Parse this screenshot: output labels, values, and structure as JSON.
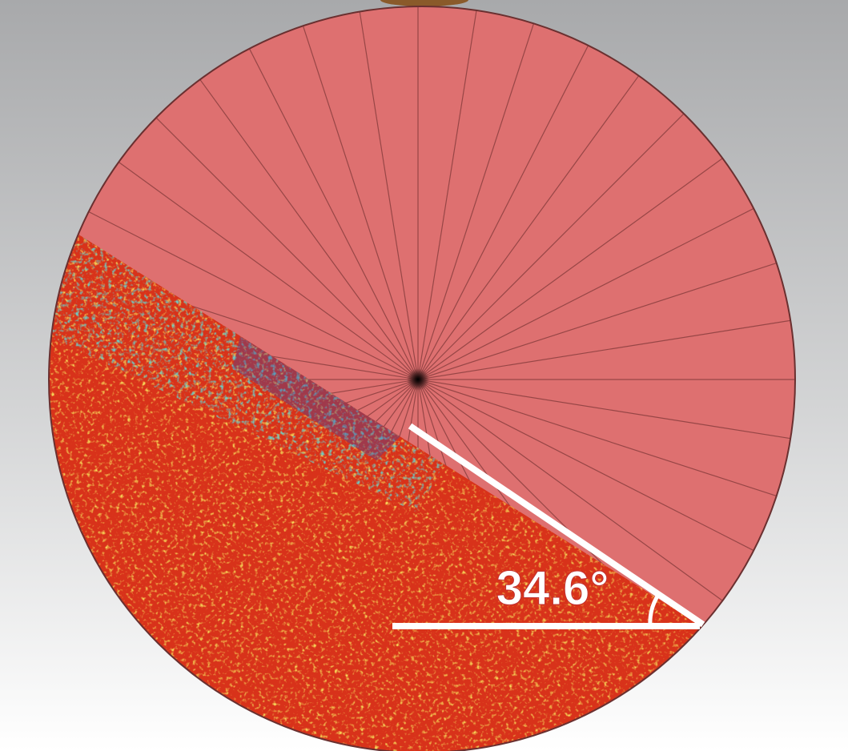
{
  "annotation": {
    "angle_label": "34.6°"
  }
}
